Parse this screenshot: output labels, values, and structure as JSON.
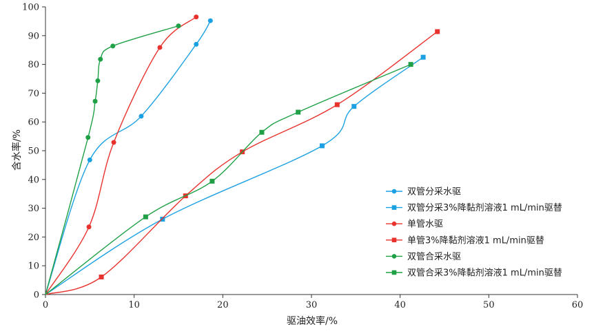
{
  "chart_data": {
    "type": "line",
    "xlabel": "驱油效率/%",
    "ylabel": "含水率/%",
    "xlim": [
      0,
      60
    ],
    "ylim": [
      0,
      100
    ],
    "x_ticks": [
      0,
      10,
      20,
      30,
      40,
      50,
      60
    ],
    "y_ticks": [
      0,
      10,
      20,
      30,
      40,
      50,
      60,
      70,
      80,
      90,
      100
    ],
    "grid": false,
    "legend_position": "bottom-right",
    "series": [
      {
        "name": "双管分采水驱",
        "color": "#1ba1e2",
        "marker": "circle",
        "points": [
          [
            0,
            0
          ],
          [
            5.0,
            46.8
          ],
          [
            10.8,
            62.0
          ],
          [
            17.0,
            87.0
          ],
          [
            18.6,
            95.2
          ]
        ]
      },
      {
        "name": "双管分采3%降黏剂溶液1 mL/min驱替",
        "color": "#1ba1e2",
        "marker": "square",
        "points": [
          [
            0,
            0
          ],
          [
            13.2,
            26.2
          ],
          [
            31.2,
            51.7
          ],
          [
            34.8,
            65.4
          ],
          [
            42.6,
            82.5
          ]
        ]
      },
      {
        "name": "单管水驱",
        "color": "#e8322d",
        "marker": "circle",
        "points": [
          [
            0,
            0
          ],
          [
            4.9,
            23.5
          ],
          [
            7.7,
            52.9
          ],
          [
            12.9,
            85.9
          ],
          [
            17.0,
            96.5
          ]
        ]
      },
      {
        "name": "单管3%降黏剂溶液1 mL/min驱替",
        "color": "#e8322d",
        "marker": "square",
        "points": [
          [
            0,
            0
          ],
          [
            6.3,
            6.1
          ],
          [
            15.8,
            34.3
          ],
          [
            22.2,
            49.6
          ],
          [
            32.9,
            66.0
          ],
          [
            44.2,
            91.4
          ]
        ]
      },
      {
        "name": "双管合采水驱",
        "color": "#1fa046",
        "marker": "circle",
        "points": [
          [
            0,
            0
          ],
          [
            4.8,
            54.6
          ],
          [
            5.6,
            67.2
          ],
          [
            5.9,
            74.3
          ],
          [
            6.2,
            81.8
          ],
          [
            7.6,
            86.4
          ],
          [
            15.0,
            93.4
          ]
        ]
      },
      {
        "name": "双管合采3%降黏剂溶液1 mL/min驱替",
        "color": "#1fa046",
        "marker": "square",
        "points": [
          [
            0,
            0
          ],
          [
            11.3,
            27.0
          ],
          [
            18.8,
            39.4
          ],
          [
            24.4,
            56.4
          ],
          [
            28.5,
            63.4
          ],
          [
            41.2,
            80.0
          ]
        ]
      }
    ]
  }
}
